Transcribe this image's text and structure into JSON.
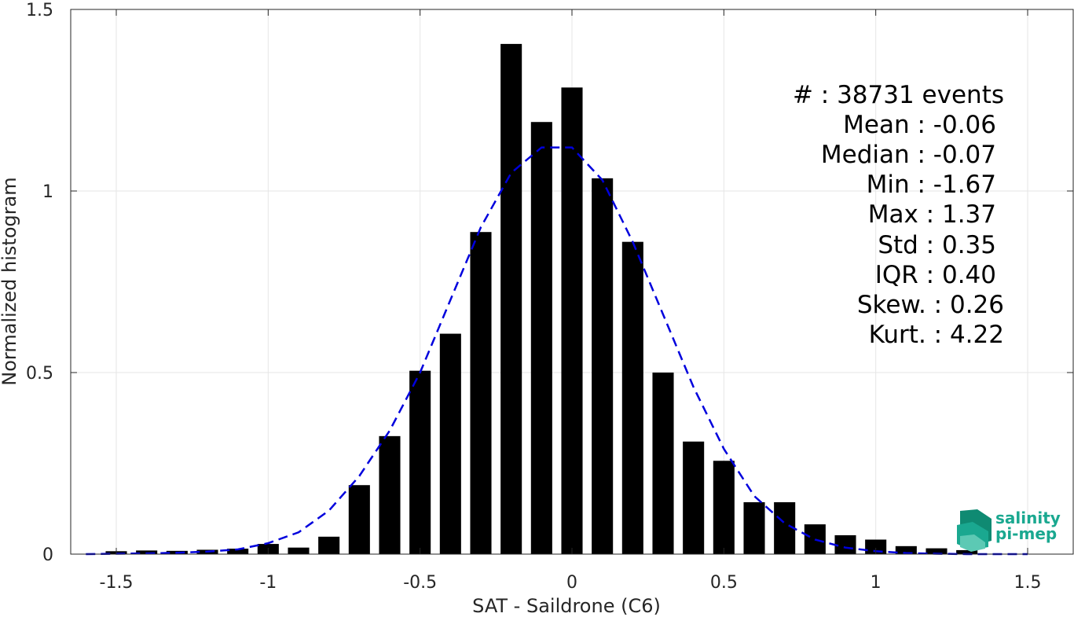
{
  "chart_data": {
    "type": "bar",
    "xlabel": "SAT - Saildrone (C6)",
    "ylabel": "Normalized histogram",
    "xlim": [
      -1.65,
      1.65
    ],
    "ylim": [
      0,
      1.5
    ],
    "x_ticks": [
      -1.5,
      -1,
      -0.5,
      0,
      0.5,
      1,
      1.5
    ],
    "x_tick_labels": [
      "-1.5",
      "-1",
      "-0.5",
      "0",
      "0.5",
      "1",
      "1.5"
    ],
    "y_ticks": [
      0,
      0.5,
      1,
      1.5
    ],
    "y_tick_labels": [
      "0",
      "0.5",
      "1",
      "1.5"
    ],
    "grid": true,
    "bar_color": "#000000",
    "bar_width": 0.07,
    "series": [
      {
        "x": [
          -1.5,
          -1.4,
          -1.3,
          -1.2,
          -1.1,
          -1.0,
          -0.9,
          -0.8,
          -0.7,
          -0.6,
          -0.5,
          -0.4,
          -0.3,
          -0.2,
          -0.1,
          0.0,
          0.1,
          0.2,
          0.3,
          0.4,
          0.5,
          0.6,
          0.7,
          0.8,
          0.9,
          1.0,
          1.1,
          1.2,
          1.3
        ],
        "values": [
          0.008,
          0.01,
          0.009,
          0.012,
          0.015,
          0.028,
          0.018,
          0.048,
          0.19,
          0.325,
          0.505,
          0.607,
          0.887,
          1.405,
          1.19,
          1.285,
          1.035,
          0.86,
          0.5,
          0.31,
          0.257,
          0.143,
          0.143,
          0.082,
          0.052,
          0.04,
          0.022,
          0.016,
          0.011
        ]
      },
      {
        "style": "dashed",
        "color": "#0000dd",
        "x": [
          -1.6,
          -1.5,
          -1.4,
          -1.3,
          -1.2,
          -1.1,
          -1.0,
          -0.9,
          -0.8,
          -0.7,
          -0.6,
          -0.5,
          -0.4,
          -0.3,
          -0.2,
          -0.1,
          0.0,
          0.1,
          0.2,
          0.3,
          0.4,
          0.5,
          0.6,
          0.7,
          0.8,
          0.9,
          1.0,
          1.1,
          1.2,
          1.3,
          1.4,
          1.5
        ],
        "values": [
          0.0,
          0.001,
          0.002,
          0.004,
          0.007,
          0.013,
          0.03,
          0.06,
          0.12,
          0.215,
          0.34,
          0.5,
          0.7,
          0.9,
          1.05,
          1.12,
          1.12,
          1.03,
          0.86,
          0.66,
          0.46,
          0.29,
          0.16,
          0.085,
          0.04,
          0.018,
          0.008,
          0.003,
          0.001,
          0.0,
          0.0,
          0.0
        ]
      }
    ],
    "annotations": [
      "#  : 38731 events",
      "Mean : -0.06",
      "Median : -0.07",
      "Min : -1.67",
      "Max : 1.37",
      "Std : 0.35",
      "IQR : 0.40",
      "Skew. : 0.26",
      "Kurt. : 4.22"
    ]
  },
  "logo": {
    "line1": "salinity",
    "line2": "pi-mep",
    "colors": [
      "#1aa890",
      "#0f8a72",
      "#5cc9b4"
    ]
  }
}
